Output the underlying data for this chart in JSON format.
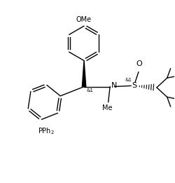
{
  "bg_color": "#ffffff",
  "line_color": "#000000",
  "line_width": 1.0,
  "font_size": 7,
  "figsize": [
    2.5,
    2.61
  ],
  "dpi": 100,
  "xlim": [
    0,
    10
  ],
  "ylim": [
    0,
    10.44
  ]
}
